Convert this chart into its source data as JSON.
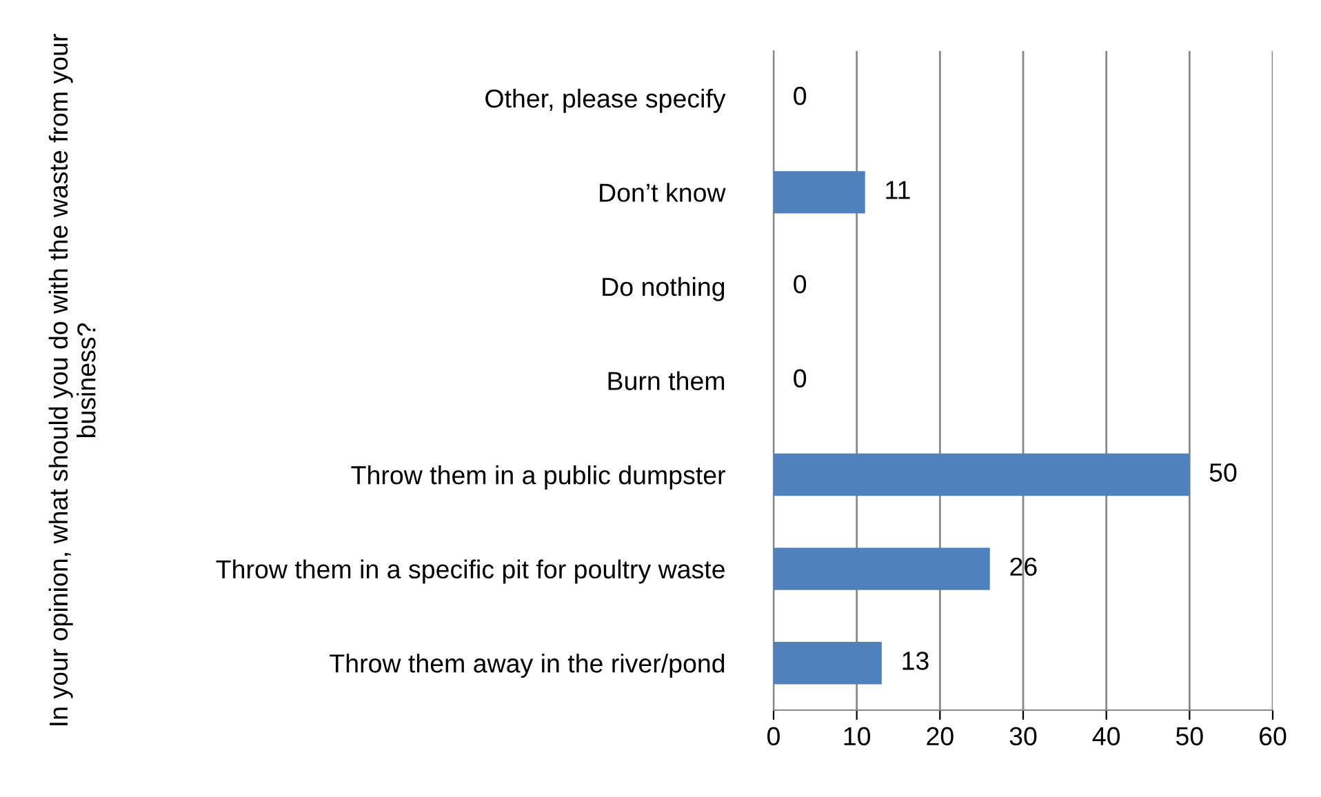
{
  "chart_data": {
    "type": "bar",
    "orientation": "horizontal",
    "ylabel": "In your opinion, what should you do with the waste from your business?",
    "categories": [
      "Other, please specify",
      "Don’t know",
      "Do nothing",
      "Burn them",
      "Throw them in a public dumpster",
      "Throw them in a specific pit for poultry waste",
      "Throw them away in the river/pond"
    ],
    "values": [
      0,
      11,
      0,
      0,
      50,
      26,
      13
    ],
    "color": "#4f81bd",
    "xlim": [
      0,
      60
    ],
    "xticks": [
      0,
      10,
      20,
      30,
      40,
      50,
      60
    ],
    "grid": "x",
    "data_labels": true,
    "legend": false
  }
}
